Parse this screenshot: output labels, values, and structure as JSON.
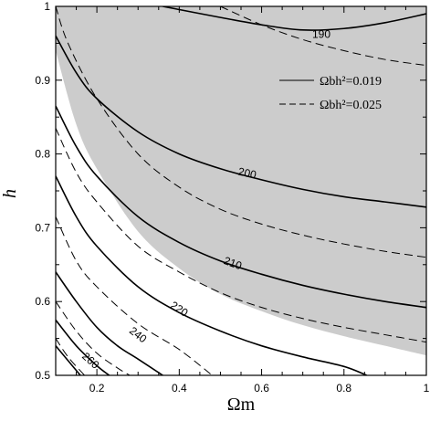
{
  "chart_data": {
    "type": "line",
    "xlabel": "Ωm",
    "ylabel": "h",
    "xlim": [
      0.1,
      1.0
    ],
    "ylim": [
      0.5,
      1.0
    ],
    "x_ticks": [
      "0.2",
      "0.4",
      "0.6",
      "0.8",
      "1"
    ],
    "y_ticks": [
      "0.5",
      "0.6",
      "0.7",
      "0.8",
      "0.9",
      "1"
    ],
    "grid": false,
    "legend_position": "top-right",
    "legend": [
      {
        "name": "Ωbh²=0.019",
        "style": "solid"
      },
      {
        "name": "Ωbh²=0.025",
        "style": "dashed"
      }
    ],
    "shaded_region": {
      "color": "#cccccc",
      "boundary": [
        [
          0.1,
          0.94
        ],
        [
          0.15,
          0.84
        ],
        [
          0.2,
          0.78
        ],
        [
          0.3,
          0.695
        ],
        [
          0.4,
          0.645
        ],
        [
          0.5,
          0.61
        ],
        [
          0.6,
          0.587
        ],
        [
          0.7,
          0.568
        ],
        [
          0.8,
          0.553
        ],
        [
          0.9,
          0.54
        ],
        [
          1.0,
          0.527
        ]
      ]
    },
    "series": [
      {
        "label": "190",
        "style": "solid",
        "points": [
          [
            0.36,
            1.0
          ],
          [
            0.5,
            0.985
          ],
          [
            0.6,
            0.975
          ],
          [
            0.7,
            0.968
          ],
          [
            0.8,
            0.97
          ],
          [
            0.9,
            0.978
          ],
          [
            1.0,
            0.99
          ]
        ]
      },
      {
        "label": "200",
        "style": "solid",
        "points": [
          [
            0.1,
            0.96
          ],
          [
            0.15,
            0.91
          ],
          [
            0.2,
            0.875
          ],
          [
            0.3,
            0.83
          ],
          [
            0.4,
            0.8
          ],
          [
            0.5,
            0.78
          ],
          [
            0.6,
            0.765
          ],
          [
            0.7,
            0.752
          ],
          [
            0.8,
            0.742
          ],
          [
            0.9,
            0.735
          ],
          [
            1.0,
            0.728
          ]
        ]
      },
      {
        "label": "210",
        "style": "solid",
        "points": [
          [
            0.1,
            0.865
          ],
          [
            0.15,
            0.81
          ],
          [
            0.2,
            0.77
          ],
          [
            0.3,
            0.715
          ],
          [
            0.4,
            0.68
          ],
          [
            0.5,
            0.655
          ],
          [
            0.6,
            0.637
          ],
          [
            0.7,
            0.622
          ],
          [
            0.8,
            0.61
          ],
          [
            0.9,
            0.6
          ],
          [
            1.0,
            0.592
          ]
        ]
      },
      {
        "label": "220",
        "style": "solid",
        "points": [
          [
            0.1,
            0.77
          ],
          [
            0.15,
            0.715
          ],
          [
            0.2,
            0.675
          ],
          [
            0.3,
            0.62
          ],
          [
            0.4,
            0.585
          ],
          [
            0.5,
            0.56
          ],
          [
            0.6,
            0.54
          ],
          [
            0.7,
            0.525
          ],
          [
            0.8,
            0.512
          ],
          [
            0.855,
            0.5
          ]
        ]
      },
      {
        "label": "240",
        "style": "solid",
        "points": [
          [
            0.1,
            0.64
          ],
          [
            0.15,
            0.6
          ],
          [
            0.2,
            0.565
          ],
          [
            0.25,
            0.54
          ],
          [
            0.3,
            0.522
          ],
          [
            0.36,
            0.5
          ]
        ]
      },
      {
        "label": "",
        "style": "solid",
        "points": [
          [
            0.1,
            0.575
          ],
          [
            0.15,
            0.54
          ],
          [
            0.2,
            0.513
          ],
          [
            0.23,
            0.5
          ]
        ]
      },
      {
        "label": "260",
        "style": "solid",
        "points": [
          [
            0.1,
            0.54
          ],
          [
            0.13,
            0.52
          ],
          [
            0.16,
            0.5
          ]
        ]
      },
      {
        "label": "",
        "style": "dashed",
        "points": [
          [
            0.5,
            1.0
          ],
          [
            0.6,
            0.975
          ],
          [
            0.7,
            0.955
          ],
          [
            0.8,
            0.94
          ],
          [
            0.9,
            0.928
          ],
          [
            1.0,
            0.92
          ]
        ]
      },
      {
        "label": "",
        "style": "dashed",
        "points": [
          [
            0.1,
            1.0
          ],
          [
            0.13,
            0.95
          ],
          [
            0.2,
            0.875
          ],
          [
            0.3,
            0.8
          ],
          [
            0.4,
            0.755
          ],
          [
            0.5,
            0.725
          ],
          [
            0.6,
            0.705
          ],
          [
            0.7,
            0.69
          ],
          [
            0.8,
            0.678
          ],
          [
            0.9,
            0.668
          ],
          [
            1.0,
            0.66
          ]
        ]
      },
      {
        "label": "",
        "style": "dashed",
        "points": [
          [
            0.1,
            0.835
          ],
          [
            0.15,
            0.775
          ],
          [
            0.2,
            0.735
          ],
          [
            0.3,
            0.675
          ],
          [
            0.4,
            0.64
          ],
          [
            0.5,
            0.612
          ],
          [
            0.6,
            0.592
          ],
          [
            0.7,
            0.577
          ],
          [
            0.8,
            0.565
          ],
          [
            0.9,
            0.555
          ],
          [
            1.0,
            0.545
          ]
        ]
      },
      {
        "label": "",
        "style": "dashed",
        "points": [
          [
            0.1,
            0.715
          ],
          [
            0.15,
            0.655
          ],
          [
            0.2,
            0.62
          ],
          [
            0.3,
            0.57
          ],
          [
            0.4,
            0.535
          ],
          [
            0.48,
            0.5
          ]
        ]
      },
      {
        "label": "",
        "style": "dashed",
        "points": [
          [
            0.1,
            0.6
          ],
          [
            0.15,
            0.56
          ],
          [
            0.2,
            0.53
          ],
          [
            0.25,
            0.51
          ],
          [
            0.28,
            0.5
          ]
        ]
      },
      {
        "label": "",
        "style": "dashed",
        "points": [
          [
            0.1,
            0.55
          ],
          [
            0.13,
            0.525
          ],
          [
            0.17,
            0.5
          ]
        ]
      }
    ],
    "contour_labels": [
      {
        "text": "190",
        "x": 0.745,
        "y": 0.962,
        "angle": 0
      },
      {
        "text": "200",
        "x": 0.565,
        "y": 0.774,
        "angle": 12
      },
      {
        "text": "210",
        "x": 0.53,
        "y": 0.652,
        "angle": 20
      },
      {
        "text": "220",
        "x": 0.4,
        "y": 0.59,
        "angle": 33
      },
      {
        "text": "240",
        "x": 0.3,
        "y": 0.555,
        "angle": 38
      },
      {
        "text": "260",
        "x": 0.185,
        "y": 0.52,
        "angle": 42
      }
    ]
  }
}
